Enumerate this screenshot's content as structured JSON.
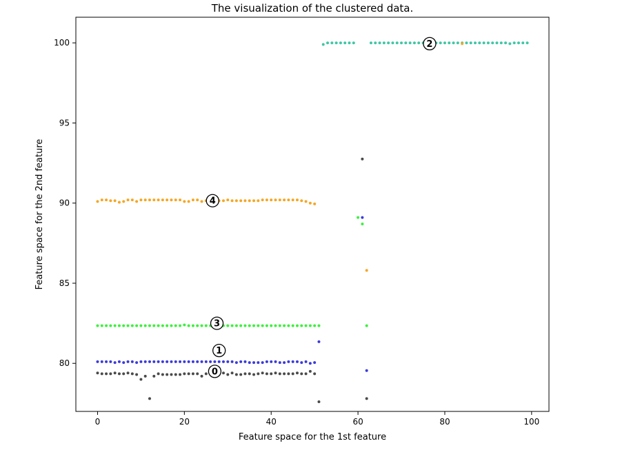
{
  "chart_data": {
    "type": "scatter",
    "title": "The visualization of the clustered data.",
    "xlabel": "Feature space for the 1st feature",
    "ylabel": "Feature space for the 2nd feature",
    "xlim": [
      -5,
      104
    ],
    "ylim": [
      77.0,
      101.6
    ],
    "xticks": [
      0,
      20,
      40,
      60,
      80,
      100
    ],
    "yticks": [
      80,
      85,
      90,
      95,
      100
    ],
    "grid": false,
    "series": [
      {
        "cluster": 0,
        "color": "#4a4a4a",
        "points": [
          [
            0,
            79.4
          ],
          [
            1,
            79.35
          ],
          [
            2,
            79.35
          ],
          [
            3,
            79.35
          ],
          [
            4,
            79.4
          ],
          [
            5,
            79.35
          ],
          [
            6,
            79.35
          ],
          [
            7,
            79.4
          ],
          [
            8,
            79.35
          ],
          [
            9,
            79.3
          ],
          [
            10,
            79.0
          ],
          [
            11,
            79.2
          ],
          [
            12,
            77.8
          ],
          [
            13,
            79.2
          ],
          [
            14,
            79.35
          ],
          [
            15,
            79.3
          ],
          [
            16,
            79.3
          ],
          [
            17,
            79.3
          ],
          [
            18,
            79.3
          ],
          [
            19,
            79.3
          ],
          [
            20,
            79.35
          ],
          [
            21,
            79.35
          ],
          [
            22,
            79.35
          ],
          [
            23,
            79.35
          ],
          [
            24,
            79.2
          ],
          [
            25,
            79.35
          ],
          [
            26,
            79.35
          ],
          [
            27,
            79.4
          ],
          [
            28,
            79.3
          ],
          [
            29,
            79.4
          ],
          [
            30,
            79.3
          ],
          [
            31,
            79.4
          ],
          [
            32,
            79.3
          ],
          [
            33,
            79.3
          ],
          [
            34,
            79.35
          ],
          [
            35,
            79.35
          ],
          [
            36,
            79.3
          ],
          [
            37,
            79.35
          ],
          [
            38,
            79.4
          ],
          [
            39,
            79.35
          ],
          [
            40,
            79.35
          ],
          [
            41,
            79.4
          ],
          [
            42,
            79.35
          ],
          [
            43,
            79.35
          ],
          [
            44,
            79.35
          ],
          [
            45,
            79.35
          ],
          [
            46,
            79.4
          ],
          [
            47,
            79.35
          ],
          [
            48,
            79.35
          ],
          [
            49,
            79.5
          ],
          [
            50,
            79.35
          ],
          [
            51,
            77.6
          ],
          [
            61,
            92.75
          ],
          [
            62,
            77.8
          ]
        ]
      },
      {
        "cluster": 1,
        "color": "#3b3bdc",
        "points": [
          [
            0,
            80.1
          ],
          [
            1,
            80.1
          ],
          [
            2,
            80.1
          ],
          [
            3,
            80.1
          ],
          [
            4,
            80.05
          ],
          [
            5,
            80.1
          ],
          [
            6,
            80.05
          ],
          [
            7,
            80.1
          ],
          [
            8,
            80.1
          ],
          [
            9,
            80.05
          ],
          [
            10,
            80.1
          ],
          [
            11,
            80.1
          ],
          [
            12,
            80.1
          ],
          [
            13,
            80.1
          ],
          [
            14,
            80.1
          ],
          [
            15,
            80.1
          ],
          [
            16,
            80.1
          ],
          [
            17,
            80.1
          ],
          [
            18,
            80.1
          ],
          [
            19,
            80.1
          ],
          [
            20,
            80.1
          ],
          [
            21,
            80.1
          ],
          [
            22,
            80.1
          ],
          [
            23,
            80.1
          ],
          [
            24,
            80.1
          ],
          [
            25,
            80.1
          ],
          [
            26,
            80.1
          ],
          [
            27,
            80.1
          ],
          [
            28,
            80.1
          ],
          [
            29,
            80.1
          ],
          [
            30,
            80.1
          ],
          [
            31,
            80.1
          ],
          [
            32,
            80.05
          ],
          [
            33,
            80.1
          ],
          [
            34,
            80.1
          ],
          [
            35,
            80.05
          ],
          [
            36,
            80.05
          ],
          [
            37,
            80.05
          ],
          [
            38,
            80.05
          ],
          [
            39,
            80.1
          ],
          [
            40,
            80.1
          ],
          [
            41,
            80.1
          ],
          [
            42,
            80.05
          ],
          [
            43,
            80.05
          ],
          [
            44,
            80.1
          ],
          [
            45,
            80.1
          ],
          [
            46,
            80.1
          ],
          [
            47,
            80.05
          ],
          [
            48,
            80.1
          ],
          [
            49,
            80.0
          ],
          [
            50,
            80.05
          ],
          [
            51,
            81.35
          ],
          [
            61,
            89.1
          ],
          [
            62,
            79.55
          ]
        ]
      },
      {
        "cluster": 2,
        "color": "#3ec7a5",
        "points": [
          [
            52,
            99.9
          ],
          [
            53,
            100
          ],
          [
            54,
            100
          ],
          [
            55,
            100
          ],
          [
            56,
            100
          ],
          [
            57,
            100
          ],
          [
            58,
            100
          ],
          [
            59,
            100
          ],
          [
            63,
            100
          ],
          [
            64,
            100
          ],
          [
            65,
            100
          ],
          [
            66,
            100
          ],
          [
            67,
            100
          ],
          [
            68,
            100
          ],
          [
            69,
            100
          ],
          [
            70,
            100
          ],
          [
            71,
            100
          ],
          [
            72,
            100
          ],
          [
            73,
            100
          ],
          [
            74,
            100
          ],
          [
            75,
            100
          ],
          [
            76,
            100
          ],
          [
            77,
            100
          ],
          [
            78,
            100
          ],
          [
            79,
            100
          ],
          [
            80,
            100
          ],
          [
            81,
            100
          ],
          [
            82,
            100
          ],
          [
            83,
            100
          ],
          [
            84,
            100
          ],
          [
            85,
            100
          ],
          [
            86,
            100
          ],
          [
            87,
            100
          ],
          [
            88,
            100
          ],
          [
            89,
            100
          ],
          [
            90,
            100
          ],
          [
            91,
            100
          ],
          [
            92,
            100
          ],
          [
            93,
            100
          ],
          [
            94,
            100
          ],
          [
            95,
            99.95
          ],
          [
            96,
            100
          ],
          [
            97,
            100
          ],
          [
            98,
            100
          ],
          [
            99,
            100
          ]
        ]
      },
      {
        "cluster": 3,
        "color": "#3cf03c",
        "points": [
          [
            0,
            82.35
          ],
          [
            1,
            82.35
          ],
          [
            2,
            82.35
          ],
          [
            3,
            82.35
          ],
          [
            4,
            82.35
          ],
          [
            5,
            82.35
          ],
          [
            6,
            82.35
          ],
          [
            7,
            82.35
          ],
          [
            8,
            82.35
          ],
          [
            9,
            82.35
          ],
          [
            10,
            82.35
          ],
          [
            11,
            82.35
          ],
          [
            12,
            82.35
          ],
          [
            13,
            82.35
          ],
          [
            14,
            82.35
          ],
          [
            15,
            82.35
          ],
          [
            16,
            82.35
          ],
          [
            17,
            82.35
          ],
          [
            18,
            82.35
          ],
          [
            19,
            82.35
          ],
          [
            20,
            82.4
          ],
          [
            21,
            82.35
          ],
          [
            22,
            82.35
          ],
          [
            23,
            82.35
          ],
          [
            24,
            82.35
          ],
          [
            25,
            82.35
          ],
          [
            26,
            82.35
          ],
          [
            27,
            82.35
          ],
          [
            28,
            82.35
          ],
          [
            29,
            82.35
          ],
          [
            30,
            82.35
          ],
          [
            31,
            82.35
          ],
          [
            32,
            82.35
          ],
          [
            33,
            82.35
          ],
          [
            34,
            82.35
          ],
          [
            35,
            82.35
          ],
          [
            36,
            82.35
          ],
          [
            37,
            82.35
          ],
          [
            38,
            82.35
          ],
          [
            39,
            82.35
          ],
          [
            40,
            82.35
          ],
          [
            41,
            82.35
          ],
          [
            42,
            82.35
          ],
          [
            43,
            82.35
          ],
          [
            44,
            82.35
          ],
          [
            45,
            82.35
          ],
          [
            46,
            82.35
          ],
          [
            47,
            82.35
          ],
          [
            48,
            82.35
          ],
          [
            49,
            82.35
          ],
          [
            50,
            82.35
          ],
          [
            51,
            82.35
          ],
          [
            60,
            89.1
          ],
          [
            61,
            88.7
          ],
          [
            62,
            82.35
          ]
        ]
      },
      {
        "cluster": 4,
        "color": "#f5a623",
        "points": [
          [
            0,
            90.1
          ],
          [
            1,
            90.2
          ],
          [
            2,
            90.2
          ],
          [
            3,
            90.15
          ],
          [
            4,
            90.15
          ],
          [
            5,
            90.05
          ],
          [
            6,
            90.1
          ],
          [
            7,
            90.2
          ],
          [
            8,
            90.2
          ],
          [
            9,
            90.1
          ],
          [
            10,
            90.2
          ],
          [
            11,
            90.2
          ],
          [
            12,
            90.2
          ],
          [
            13,
            90.2
          ],
          [
            14,
            90.2
          ],
          [
            15,
            90.2
          ],
          [
            16,
            90.2
          ],
          [
            17,
            90.2
          ],
          [
            18,
            90.2
          ],
          [
            19,
            90.2
          ],
          [
            20,
            90.1
          ],
          [
            21,
            90.1
          ],
          [
            22,
            90.2
          ],
          [
            23,
            90.2
          ],
          [
            24,
            90.1
          ],
          [
            25,
            90.15
          ],
          [
            26,
            90.2
          ],
          [
            27,
            90.2
          ],
          [
            28,
            90.15
          ],
          [
            29,
            90.15
          ],
          [
            30,
            90.2
          ],
          [
            31,
            90.15
          ],
          [
            32,
            90.15
          ],
          [
            33,
            90.15
          ],
          [
            34,
            90.15
          ],
          [
            35,
            90.15
          ],
          [
            36,
            90.15
          ],
          [
            37,
            90.15
          ],
          [
            38,
            90.2
          ],
          [
            39,
            90.2
          ],
          [
            40,
            90.2
          ],
          [
            41,
            90.2
          ],
          [
            42,
            90.2
          ],
          [
            43,
            90.2
          ],
          [
            44,
            90.2
          ],
          [
            45,
            90.2
          ],
          [
            46,
            90.2
          ],
          [
            47,
            90.15
          ],
          [
            48,
            90.1
          ],
          [
            49,
            90.0
          ],
          [
            50,
            89.95
          ],
          [
            62,
            85.8
          ],
          [
            84,
            99.95
          ]
        ]
      }
    ],
    "centroids": [
      {
        "label": "0",
        "x": 27,
        "y": 79.5
      },
      {
        "label": "1",
        "x": 28,
        "y": 80.8
      },
      {
        "label": "2",
        "x": 76.5,
        "y": 99.95
      },
      {
        "label": "3",
        "x": 27.5,
        "y": 82.5
      },
      {
        "label": "4",
        "x": 26.5,
        "y": 90.15
      }
    ]
  }
}
